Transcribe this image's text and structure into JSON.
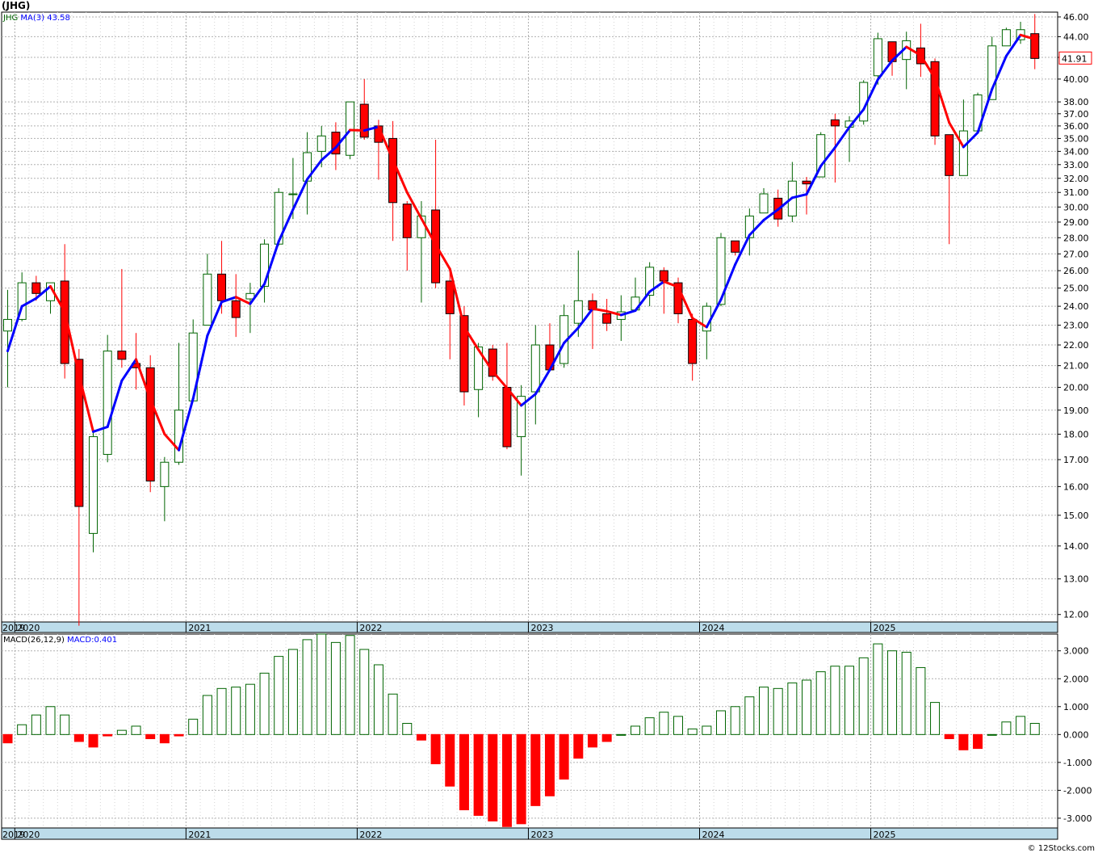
{
  "title": "(JHG)",
  "copyright": "© 12Stocks.com",
  "colors": {
    "up": "#006400",
    "down": "#ff0000",
    "ma_up": "#0000ff",
    "ma_down": "#ff0000",
    "grid": "#b0b0b0",
    "timebar": "#bcdcea",
    "last_label": "#ff0000"
  },
  "chart_data": [
    {
      "type": "candlestick",
      "symbol": "JHG",
      "legend": {
        "symbol": "JHG",
        "ma_label": "MA(3)",
        "ma_value": "43.58"
      },
      "yscale": "log",
      "ylim": [
        11.8,
        46.5
      ],
      "y_ticks": [
        "12.00",
        "13.00",
        "14.00",
        "15.00",
        "16.00",
        "17.00",
        "18.00",
        "19.00",
        "20.00",
        "21.00",
        "22.00",
        "23.00",
        "24.00",
        "25.00",
        "26.00",
        "27.00",
        "28.00",
        "29.00",
        "30.00",
        "31.00",
        "32.00",
        "33.00",
        "34.00",
        "35.00",
        "36.00",
        "37.00",
        "38.00",
        "40.00",
        "42.00",
        "44.00",
        "46.00"
      ],
      "last_price_label": "41.91",
      "x_labels": [
        "2019",
        "2020",
        "2021",
        "2022",
        "2023",
        "2024",
        "2025"
      ],
      "grid": true,
      "candles": [
        {
          "d": "2019-12",
          "o": 22.7,
          "h": 24.9,
          "l": 20.0,
          "c": 23.3
        },
        {
          "d": "2020-01",
          "o": 23.3,
          "h": 25.9,
          "l": 23.2,
          "c": 25.3
        },
        {
          "d": "2020-02",
          "o": 25.3,
          "h": 25.7,
          "l": 24.3,
          "c": 24.7
        },
        {
          "d": "2020-03",
          "o": 24.3,
          "h": 25.3,
          "l": 23.6,
          "c": 25.3
        },
        {
          "d": "2020-04",
          "o": 25.4,
          "h": 27.6,
          "l": 20.4,
          "c": 21.1
        },
        {
          "d": "2020-05",
          "o": 21.3,
          "h": 21.8,
          "l": 11.7,
          "c": 15.3
        },
        {
          "d": "2020-06",
          "o": 14.4,
          "h": 18.2,
          "l": 13.8,
          "c": 17.9
        },
        {
          "d": "2020-07",
          "o": 17.2,
          "h": 22.5,
          "l": 16.9,
          "c": 21.7
        },
        {
          "d": "2020-08",
          "o": 21.7,
          "h": 26.1,
          "l": 20.9,
          "c": 21.3
        },
        {
          "d": "2020-09",
          "o": 21.1,
          "h": 22.6,
          "l": 19.9,
          "c": 20.9
        },
        {
          "d": "2020-10",
          "o": 20.9,
          "h": 21.5,
          "l": 15.8,
          "c": 16.2
        },
        {
          "d": "2020-11",
          "o": 16.0,
          "h": 17.1,
          "l": 14.8,
          "c": 16.9
        },
        {
          "d": "2020-12",
          "o": 16.9,
          "h": 22.1,
          "l": 16.8,
          "c": 19.0
        },
        {
          "d": "2021-01",
          "o": 19.4,
          "h": 23.3,
          "l": 19.4,
          "c": 22.6
        },
        {
          "d": "2021-02",
          "o": 23.0,
          "h": 27.0,
          "l": 23.0,
          "c": 25.8
        },
        {
          "d": "2021-03",
          "o": 25.8,
          "h": 27.8,
          "l": 23.6,
          "c": 24.3
        },
        {
          "d": "2021-04",
          "o": 24.3,
          "h": 25.8,
          "l": 22.4,
          "c": 23.4
        },
        {
          "d": "2021-05",
          "o": 24.4,
          "h": 25.3,
          "l": 22.6,
          "c": 24.7
        },
        {
          "d": "2021-06",
          "o": 25.1,
          "h": 27.9,
          "l": 24.2,
          "c": 27.6
        },
        {
          "d": "2021-07",
          "o": 27.6,
          "h": 31.3,
          "l": 27.5,
          "c": 31.0
        },
        {
          "d": "2021-08",
          "o": 30.9,
          "h": 33.5,
          "l": 29.2,
          "c": 30.9
        },
        {
          "d": "2021-09",
          "o": 31.8,
          "h": 35.5,
          "l": 29.5,
          "c": 33.9
        },
        {
          "d": "2021-10",
          "o": 34.0,
          "h": 36.0,
          "l": 32.8,
          "c": 35.2
        },
        {
          "d": "2021-11",
          "o": 35.5,
          "h": 36.3,
          "l": 32.6,
          "c": 33.8
        },
        {
          "d": "2021-12",
          "o": 33.7,
          "h": 38.0,
          "l": 33.4,
          "c": 38.0
        },
        {
          "d": "2022-01",
          "o": 37.8,
          "h": 40.0,
          "l": 34.9,
          "c": 35.1
        },
        {
          "d": "2022-02",
          "o": 36.0,
          "h": 36.5,
          "l": 31.9,
          "c": 34.7
        },
        {
          "d": "2022-03",
          "o": 35.0,
          "h": 36.4,
          "l": 27.8,
          "c": 30.3
        },
        {
          "d": "2022-04",
          "o": 30.2,
          "h": 30.4,
          "l": 26.0,
          "c": 28.0
        },
        {
          "d": "2022-05",
          "o": 28.0,
          "h": 30.4,
          "l": 24.2,
          "c": 29.4
        },
        {
          "d": "2022-06",
          "o": 29.8,
          "h": 34.9,
          "l": 25.0,
          "c": 25.3
        },
        {
          "d": "2022-07",
          "o": 25.4,
          "h": 26.1,
          "l": 21.3,
          "c": 23.6
        },
        {
          "d": "2022-08",
          "o": 23.5,
          "h": 24.0,
          "l": 19.2,
          "c": 19.8
        },
        {
          "d": "2022-09",
          "o": 19.9,
          "h": 22.1,
          "l": 18.7,
          "c": 21.9
        },
        {
          "d": "2022-10",
          "o": 21.8,
          "h": 22.0,
          "l": 20.3,
          "c": 20.5
        },
        {
          "d": "2022-11",
          "o": 20.0,
          "h": 22.1,
          "l": 17.4,
          "c": 17.5
        },
        {
          "d": "2022-12",
          "o": 17.9,
          "h": 20.1,
          "l": 16.4,
          "c": 19.6
        },
        {
          "d": "2023-01",
          "o": 19.8,
          "h": 23.0,
          "l": 18.4,
          "c": 22.0
        },
        {
          "d": "2023-02",
          "o": 22.0,
          "h": 23.1,
          "l": 20.9,
          "c": 20.8
        },
        {
          "d": "2023-03",
          "o": 21.1,
          "h": 24.1,
          "l": 20.9,
          "c": 23.5
        },
        {
          "d": "2023-04",
          "o": 23.1,
          "h": 27.2,
          "l": 22.4,
          "c": 24.3
        },
        {
          "d": "2023-05",
          "o": 24.3,
          "h": 24.7,
          "l": 21.8,
          "c": 23.8
        },
        {
          "d": "2023-06",
          "o": 23.6,
          "h": 24.4,
          "l": 22.7,
          "c": 23.1
        },
        {
          "d": "2023-07",
          "o": 23.3,
          "h": 24.6,
          "l": 22.2,
          "c": 23.7
        },
        {
          "d": "2023-08",
          "o": 23.8,
          "h": 25.6,
          "l": 23.8,
          "c": 24.5
        },
        {
          "d": "2023-09",
          "o": 24.6,
          "h": 26.5,
          "l": 24.0,
          "c": 26.2
        },
        {
          "d": "2023-10",
          "o": 26.0,
          "h": 26.2,
          "l": 23.6,
          "c": 25.4
        },
        {
          "d": "2023-11",
          "o": 25.3,
          "h": 25.6,
          "l": 23.1,
          "c": 23.6
        },
        {
          "d": "2023-12",
          "o": 23.3,
          "h": 23.6,
          "l": 20.3,
          "c": 21.1
        },
        {
          "d": "2024-01",
          "o": 22.7,
          "h": 24.2,
          "l": 21.3,
          "c": 24.0
        },
        {
          "d": "2024-02",
          "o": 24.1,
          "h": 28.3,
          "l": 24.0,
          "c": 28.0
        },
        {
          "d": "2024-03",
          "o": 27.8,
          "h": 27.8,
          "l": 26.9,
          "c": 27.1
        },
        {
          "d": "2024-04",
          "o": 28.0,
          "h": 29.9,
          "l": 26.9,
          "c": 29.4
        },
        {
          "d": "2024-05",
          "o": 29.6,
          "h": 31.3,
          "l": 29.6,
          "c": 30.9
        },
        {
          "d": "2024-06",
          "o": 30.6,
          "h": 31.2,
          "l": 28.7,
          "c": 29.2
        },
        {
          "d": "2024-07",
          "o": 29.4,
          "h": 33.2,
          "l": 29.0,
          "c": 31.8
        },
        {
          "d": "2024-08",
          "o": 31.8,
          "h": 32.1,
          "l": 29.5,
          "c": 31.6
        },
        {
          "d": "2024-09",
          "o": 32.1,
          "h": 35.5,
          "l": 32.1,
          "c": 35.3
        },
        {
          "d": "2024-10",
          "o": 36.5,
          "h": 37.0,
          "l": 31.7,
          "c": 36.0
        },
        {
          "d": "2024-11",
          "o": 35.9,
          "h": 36.8,
          "l": 33.2,
          "c": 36.4
        },
        {
          "d": "2024-12",
          "o": 36.4,
          "h": 39.9,
          "l": 36.1,
          "c": 39.7
        },
        {
          "d": "2025-01",
          "o": 40.3,
          "h": 44.4,
          "l": 39.5,
          "c": 43.8
        },
        {
          "d": "2025-02",
          "o": 43.5,
          "h": 43.5,
          "l": 40.3,
          "c": 41.6
        },
        {
          "d": "2025-03",
          "o": 41.8,
          "h": 44.5,
          "l": 39.1,
          "c": 43.6
        },
        {
          "d": "2025-04",
          "o": 42.9,
          "h": 45.3,
          "l": 40.2,
          "c": 41.4
        },
        {
          "d": "2025-05",
          "o": 41.6,
          "h": 41.9,
          "l": 34.5,
          "c": 35.2
        },
        {
          "d": "2025-06",
          "o": 35.3,
          "h": 35.3,
          "l": 27.6,
          "c": 32.2
        },
        {
          "d": "2025-07",
          "o": 32.2,
          "h": 38.2,
          "l": 32.2,
          "c": 35.6
        },
        {
          "d": "2025-08",
          "o": 35.6,
          "h": 38.8,
          "l": 35.5,
          "c": 38.6
        },
        {
          "d": "2025-09",
          "o": 38.2,
          "h": 44.0,
          "l": 38.2,
          "c": 43.1
        },
        {
          "d": "2025-10",
          "o": 43.1,
          "h": 44.9,
          "l": 43.1,
          "c": 44.7
        },
        {
          "d": "2025-11",
          "o": 43.7,
          "h": 45.5,
          "l": 43.3,
          "c": 44.7
        },
        {
          "d": "2025-12",
          "o": 44.3,
          "h": 46.3,
          "l": 40.9,
          "c": 41.9
        }
      ]
    },
    {
      "type": "bar",
      "name": "MACD",
      "legend": {
        "label": "MACD(26,12,9)",
        "value_label": "MACD:0.401"
      },
      "ylim": [
        -3.35,
        3.6
      ],
      "y_ticks": [
        "-3.000",
        "-2.000",
        "-1.000",
        "0.000",
        "1.000",
        "2.000",
        "3.000"
      ],
      "x_labels": [
        "2019",
        "2020",
        "2021",
        "2022",
        "2023",
        "2024",
        "2025"
      ],
      "values": [
        -0.3,
        0.35,
        0.7,
        1.0,
        0.7,
        -0.25,
        -0.45,
        -0.05,
        0.15,
        0.3,
        -0.15,
        -0.3,
        -0.05,
        0.55,
        1.4,
        1.65,
        1.7,
        1.8,
        2.2,
        2.8,
        3.05,
        3.4,
        3.6,
        3.3,
        3.55,
        3.05,
        2.5,
        1.45,
        0.4,
        -0.2,
        -1.05,
        -1.85,
        -2.7,
        -2.9,
        -3.1,
        -3.3,
        -3.2,
        -2.55,
        -2.2,
        -1.6,
        -0.85,
        -0.45,
        -0.25,
        0.0,
        0.3,
        0.6,
        0.8,
        0.65,
        0.2,
        0.3,
        0.85,
        1.0,
        1.35,
        1.7,
        1.65,
        1.85,
        1.95,
        2.25,
        2.45,
        2.45,
        2.75,
        3.25,
        3.0,
        2.95,
        2.4,
        1.15,
        -0.15,
        -0.55,
        -0.5,
        0.0,
        0.45,
        0.65,
        0.4
      ]
    }
  ]
}
